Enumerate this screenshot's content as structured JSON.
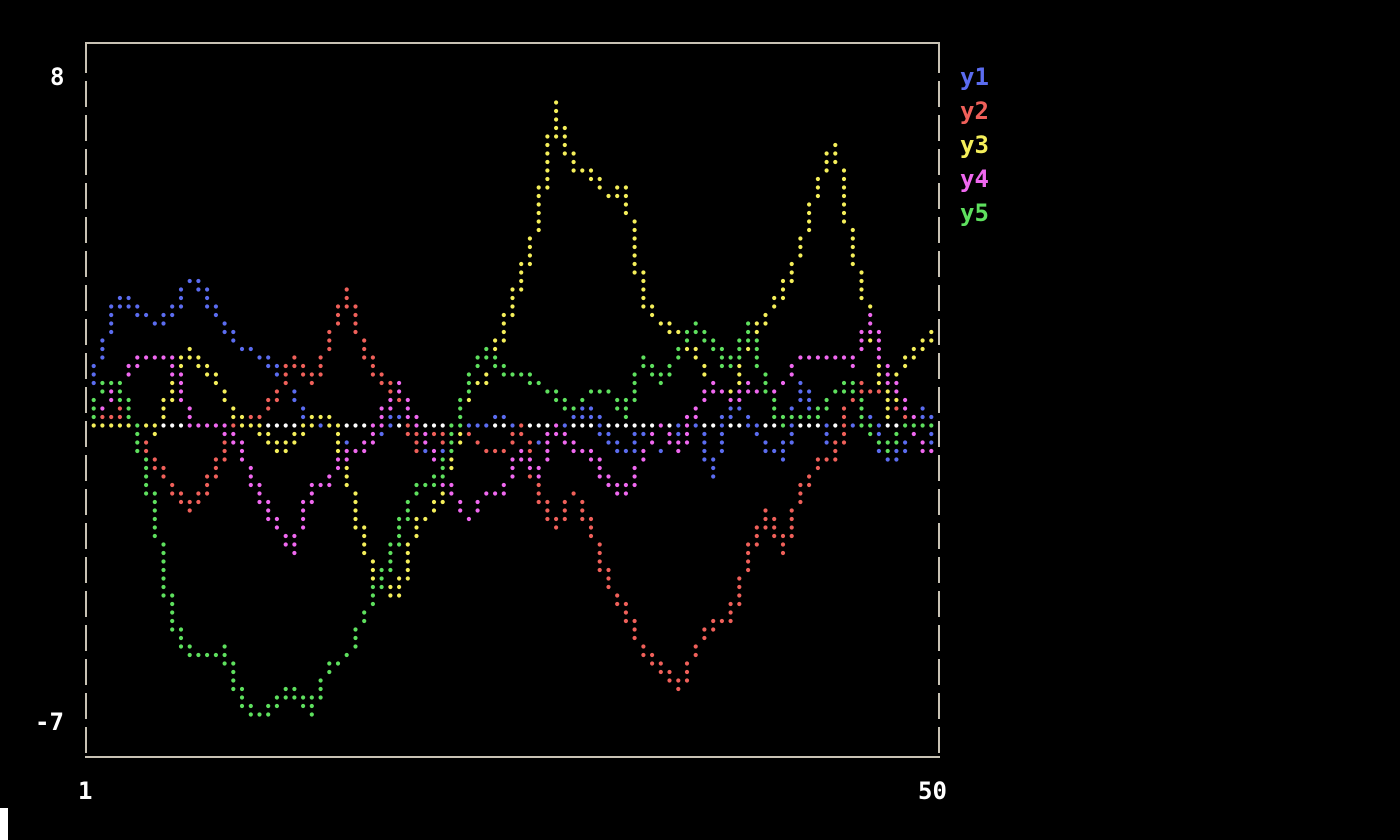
{
  "chart_data": {
    "type": "scatter",
    "style": "braille line plot",
    "xlim": [
      1,
      50
    ],
    "ylim": [
      -7,
      8
    ],
    "x_tick_labels": [
      "1",
      "50"
    ],
    "y_tick_labels": [
      "8",
      "-7"
    ],
    "legend_position": "right",
    "zero_line": true,
    "frame_color": "#c8c2b4",
    "x": [
      1,
      2,
      3,
      4,
      5,
      6,
      7,
      8,
      9,
      10,
      11,
      12,
      13,
      14,
      15,
      16,
      17,
      18,
      19,
      20,
      21,
      22,
      23,
      24,
      25,
      26,
      27,
      28,
      29,
      30,
      31,
      32,
      33,
      34,
      35,
      36,
      37,
      38,
      39,
      40,
      41,
      42,
      43,
      44,
      45,
      46,
      47,
      48,
      49,
      50
    ],
    "series": [
      {
        "name": "y1",
        "color": "#5b6cf0",
        "values": [
          0.5,
          1.6,
          2.8,
          2.5,
          2.2,
          2.4,
          3.2,
          2.8,
          2.1,
          1.6,
          1.5,
          1.2,
          0.6,
          -0.1,
          0,
          -0.6,
          -0.5,
          -0.1,
          0.2,
          -0.3,
          -0.8,
          -0.4,
          0,
          0,
          0.1,
          -0.3,
          -0.5,
          -0.3,
          0.1,
          0.3,
          -0.4,
          -0.7,
          -0.2,
          -0.6,
          -0.2,
          0.2,
          -1.2,
          0.6,
          0.1,
          -0.5,
          -0.8,
          0.8,
          0.2,
          -0.6,
          0,
          0.2,
          -0.9,
          -0.5,
          0.3,
          -0.6
        ]
      },
      {
        "name": "y2",
        "color": "#f0605a",
        "values": [
          0,
          0,
          0.3,
          -0.3,
          -0.8,
          -1.5,
          -1.9,
          -1.5,
          -0.5,
          0,
          0.1,
          0.6,
          1.4,
          0.8,
          1.8,
          2.9,
          1.6,
          0.9,
          0.7,
          -0.6,
          -0.2,
          -0.5,
          -0.3,
          -0.6,
          -0.7,
          0,
          -1.6,
          -2.3,
          -1.5,
          -2.3,
          -3.5,
          -4.2,
          -5.0,
          -5.4,
          -5.9,
          -5.0,
          -4.4,
          -4.3,
          -3.0,
          -2.0,
          -2.8,
          -1.5,
          -0.9,
          -0.9,
          0.9,
          0.6,
          0.8,
          0.2,
          -0.1,
          0
        ]
      },
      {
        "name": "y3",
        "color": "#f5ef5a",
        "values": [
          0,
          0,
          0,
          0,
          -0.2,
          0.8,
          1.6,
          1.2,
          0.6,
          0,
          -0.1,
          -0.6,
          -0.4,
          0,
          0.2,
          -1.0,
          -2.8,
          -3.6,
          -3.8,
          -2.2,
          -2.0,
          -0.8,
          0.8,
          0.8,
          2.2,
          3.1,
          4.5,
          7.0,
          5.6,
          5.5,
          5.0,
          5.2,
          2.6,
          2.2,
          2.0,
          1.5,
          0.8,
          0.5,
          1.8,
          2.3,
          2.9,
          3.8,
          5.3,
          6.2,
          3.8,
          2.3,
          0.2,
          1.4,
          1.6,
          2.2
        ]
      },
      {
        "name": "y4",
        "color": "#f068f0",
        "values": [
          0,
          0.3,
          0.8,
          1.4,
          1.5,
          1.4,
          0,
          0,
          -0.1,
          -0.6,
          -1.6,
          -2.3,
          -2.8,
          -1.4,
          -1.3,
          -0.6,
          -0.6,
          0.1,
          0.8,
          0,
          -0.7,
          -1.5,
          -2.2,
          -1.5,
          -1.5,
          -0.6,
          -1.2,
          0,
          -0.6,
          -0.6,
          -1.4,
          -1.6,
          -0.7,
          0,
          -0.6,
          0.3,
          0.8,
          0.5,
          0.8,
          0.7,
          0.8,
          1.5,
          1.5,
          1.5,
          1.3,
          2.3,
          1.0,
          0.5,
          -0.6,
          -0.6
        ]
      },
      {
        "name": "y5",
        "color": "#5ee05e",
        "values": [
          0,
          0.8,
          0.8,
          -0.3,
          -2.0,
          -4.4,
          -5.1,
          -5.1,
          -5.0,
          -6.2,
          -6.5,
          -6.1,
          -5.9,
          -6.4,
          -5.3,
          -5.2,
          -4.3,
          -3.5,
          -2.4,
          -1.4,
          -1.4,
          -0.5,
          1.0,
          1.6,
          1.1,
          1.0,
          0.9,
          0.6,
          0.3,
          0.7,
          0.7,
          0.2,
          1.4,
          0.9,
          1.5,
          2.2,
          1.7,
          1.2,
          2.2,
          0.8,
          0,
          0.2,
          0.2,
          0.7,
          0.9,
          -0.3,
          -0.6,
          0,
          0,
          0
        ]
      }
    ]
  }
}
